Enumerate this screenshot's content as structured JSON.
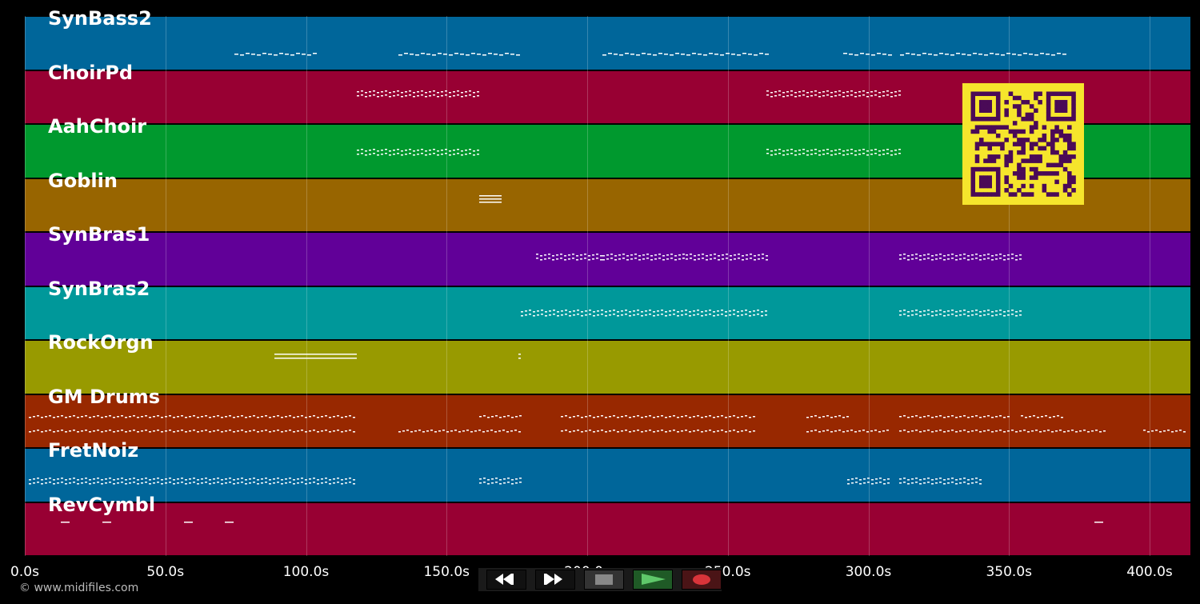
{
  "tracks": [
    {
      "name": "SynBass2",
      "color": "#00669a"
    },
    {
      "name": "ChoirPd",
      "color": "#980033"
    },
    {
      "name": "AahChoir",
      "color": "#00992e"
    },
    {
      "name": "Goblin",
      "color": "#986500"
    },
    {
      "name": "SynBras1",
      "color": "#610098"
    },
    {
      "name": "SynBras2",
      "color": "#00989a"
    },
    {
      "name": "RockOrgn",
      "color": "#989a00"
    },
    {
      "name": "GM Drums",
      "color": "#982800"
    },
    {
      "name": "FretNoiz",
      "color": "#00669a"
    },
    {
      "name": "RevCymbl",
      "color": "#980033"
    }
  ],
  "timeline": {
    "ticks": [
      "0.0s",
      "50.0s",
      "100.0s",
      "150.0s",
      "200.0s",
      "250.0s",
      "300.0s",
      "350.0s",
      "400.0s"
    ],
    "tick_values": [
      0,
      50,
      100,
      150,
      200,
      250,
      300,
      350,
      400
    ],
    "max_seconds": 414
  },
  "copyright": "© www.midifiles.com",
  "transport": {
    "rewind_icon": "rewind-icon",
    "forward_icon": "fast-forward-icon",
    "stop_icon": "stop-icon",
    "play_icon": "play-icon",
    "record_icon": "record-icon",
    "play_color": "#2e9b3b",
    "record_color": "#d9343a"
  },
  "qr_code": {
    "color": "#f6e52c",
    "module_color": "#4a0a57"
  }
}
